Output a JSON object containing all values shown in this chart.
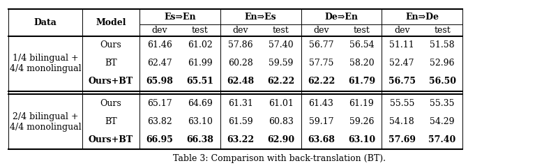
{
  "caption": "Table 3: Comparison with back-translation (BT).",
  "group_labels": [
    "Es⇒En",
    "En⇒Es",
    "De⇒En",
    "En⇒De"
  ],
  "rows": [
    {
      "data_label": "1/4 bilingual +\n4/4 monolingual",
      "models": [
        {
          "name": "Ours",
          "bold": false,
          "values": [
            "61.46",
            "61.02",
            "57.86",
            "57.40",
            "56.77",
            "56.54",
            "51.11",
            "51.58"
          ]
        },
        {
          "name": "BT",
          "bold": false,
          "values": [
            "62.47",
            "61.99",
            "60.28",
            "59.59",
            "57.75",
            "58.20",
            "52.47",
            "52.96"
          ]
        },
        {
          "name": "Ours+BT",
          "bold": true,
          "values": [
            "65.98",
            "65.51",
            "62.48",
            "62.22",
            "62.22",
            "61.79",
            "56.75",
            "56.50"
          ]
        }
      ]
    },
    {
      "data_label": "2/4 bilingual +\n4/4 monolingual",
      "models": [
        {
          "name": "Ours",
          "bold": false,
          "values": [
            "65.17",
            "64.69",
            "61.31",
            "61.01",
            "61.43",
            "61.19",
            "55.55",
            "55.35"
          ]
        },
        {
          "name": "BT",
          "bold": false,
          "values": [
            "63.82",
            "63.10",
            "61.59",
            "60.83",
            "59.17",
            "59.26",
            "54.18",
            "54.29"
          ]
        },
        {
          "name": "Ours+BT",
          "bold": true,
          "values": [
            "66.95",
            "66.38",
            "63.22",
            "62.90",
            "63.68",
            "63.10",
            "57.69",
            "57.40"
          ]
        }
      ]
    }
  ],
  "background_color": "#ffffff",
  "text_color": "#000000"
}
